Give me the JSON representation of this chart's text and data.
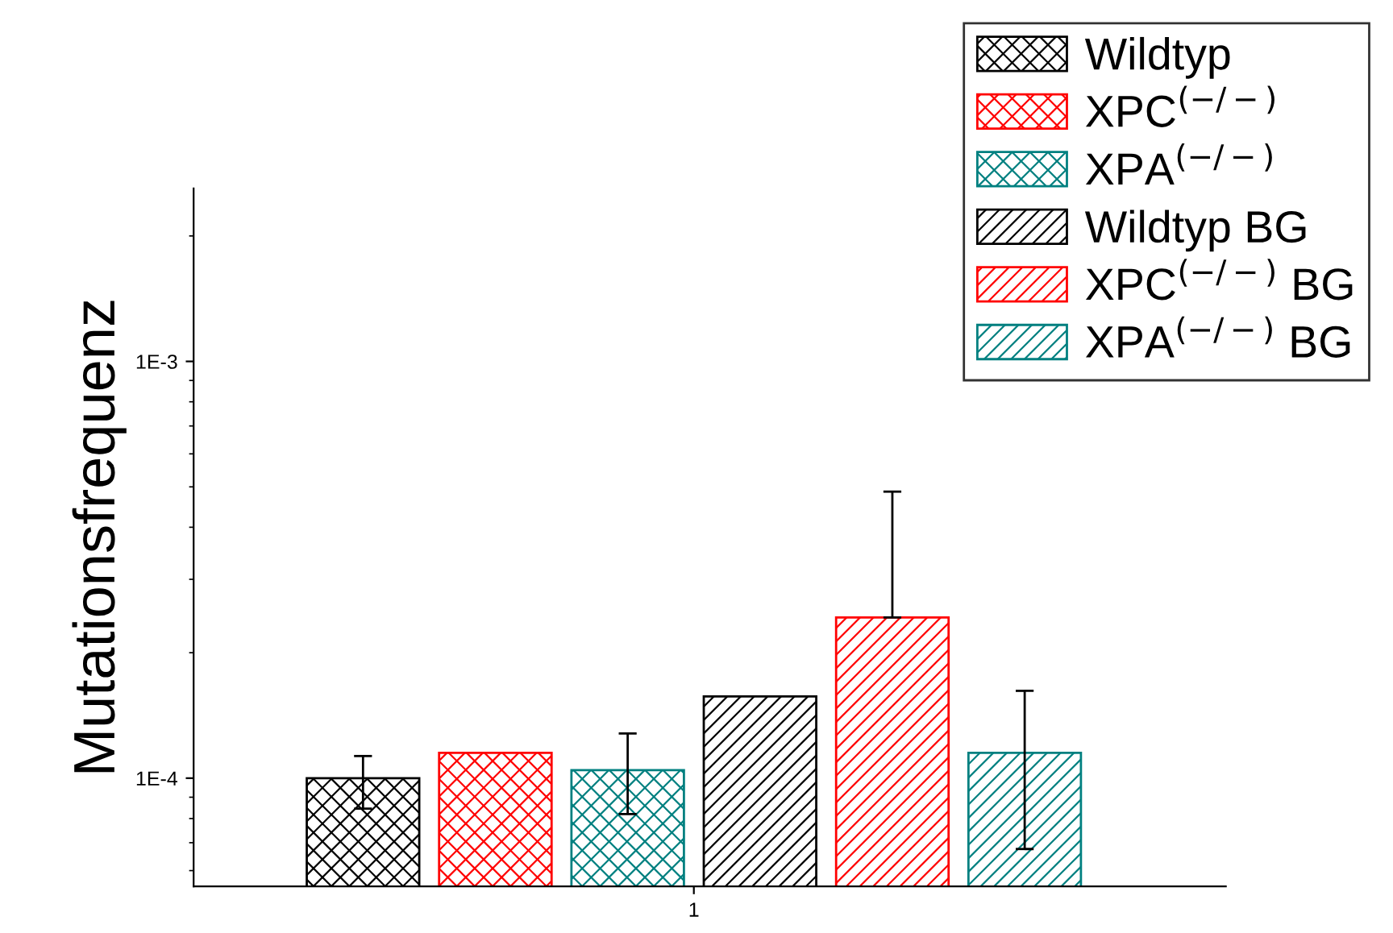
{
  "chart_data": {
    "type": "bar",
    "ylabel": "Mutationsfrequenz",
    "categories": [
      "1"
    ],
    "log": true,
    "legend": "top right",
    "ylim": [
      5.5e-05,
      0.0026
    ],
    "yticks": [
      {
        "value": 0.0001,
        "label": "1E-4"
      },
      {
        "value": 0.001,
        "label": "1E-3"
      }
    ],
    "series": [
      {
        "name": "Wildtyp",
        "color": "#000000",
        "values": [
          0.0001
        ],
        "errors": [
          [
            8.45e-05,
            0.000113
          ]
        ]
      },
      {
        "name": "XPC$^{(−/−)}$",
        "color": "#ff0000",
        "values": [
          0.000115
        ],
        "errors": [
          null
        ]
      },
      {
        "name": "XPA$^{(−/−)}$",
        "color": "#008080",
        "values": [
          0.0001045
        ],
        "errors": [
          [
            8.2e-05,
            0.000128
          ]
        ]
      },
      {
        "name": "Wildtyp BG",
        "color": "#000000",
        "values": [
          0.000157
        ],
        "errors": [
          null
        ]
      },
      {
        "name": "XPC$^{(−/−)}$ BG",
        "color": "#ff0000",
        "values": [
          0.000243
        ],
        "errors": [
          [
            0.000243,
            0.000487
          ]
        ]
      },
      {
        "name": "XPA$^{(−/−)}$ BG",
        "color": "#008080",
        "values": [
          0.000115
        ],
        "errors": [
          [
            6.76e-05,
            0.000162
          ]
        ]
      }
    ]
  }
}
